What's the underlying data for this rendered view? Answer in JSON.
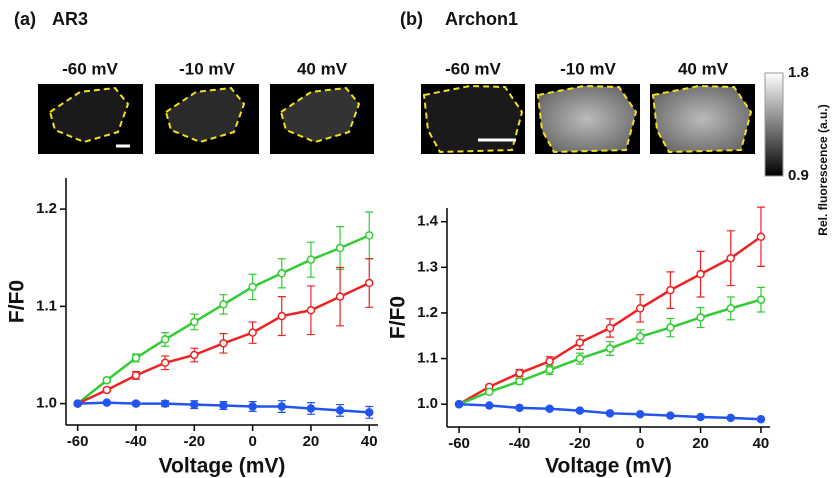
{
  "chart_data": [
    {
      "type": "line",
      "panel_label": "(a)",
      "title": "AR3",
      "image_labels": [
        "-60 mV",
        "-10 mV",
        "40 mV"
      ],
      "xlabel": "Voltage (mV)",
      "ylabel": "F/F0",
      "x": [
        -60,
        -50,
        -40,
        -30,
        -20,
        -10,
        0,
        10,
        20,
        30,
        40
      ],
      "xlim": [
        -64,
        43
      ],
      "xticks": [
        -60,
        -40,
        -20,
        0,
        20,
        40
      ],
      "ylim": [
        0.978,
        1.232
      ],
      "yticks": [
        {
          "value": 1,
          "label": "1.0"
        },
        1.1,
        1.2
      ],
      "series": [
        {
          "color": "#33cc33",
          "values": [
            1.0,
            1.024,
            1.047,
            1.066,
            1.084,
            1.102,
            1.12,
            1.134,
            1.148,
            1.16,
            1.173
          ],
          "errors": [
            0,
            0.002,
            0.004,
            0.007,
            0.008,
            0.01,
            0.013,
            0.015,
            0.018,
            0.022,
            0.024
          ]
        },
        {
          "color": "#ee2222",
          "values": [
            1.0,
            1.014,
            1.029,
            1.042,
            1.05,
            1.062,
            1.073,
            1.09,
            1.096,
            1.11,
            1.124
          ],
          "errors": [
            0,
            0.002,
            0.004,
            0.007,
            0.007,
            0.01,
            0.011,
            0.02,
            0.025,
            0.03,
            0.025
          ]
        },
        {
          "color": "#2255ee",
          "values": [
            1.0,
            1.001,
            1.0,
            1.0,
            0.999,
            0.998,
            0.997,
            0.997,
            0.995,
            0.993,
            0.991
          ],
          "errors": [
            0,
            0.001,
            0.002,
            0.003,
            0.004,
            0.004,
            0.005,
            0.006,
            0.006,
            0.006,
            0.006
          ]
        }
      ]
    },
    {
      "type": "line",
      "panel_label": "(b)",
      "title": "Archon1",
      "image_labels": [
        "-60 mV",
        "-10 mV",
        "40 mV"
      ],
      "xlabel": "Voltage (mV)",
      "ylabel": "F/F0",
      "x": [
        -60,
        -50,
        -40,
        -30,
        -20,
        -10,
        0,
        10,
        20,
        30,
        40
      ],
      "xlim": [
        -64,
        43
      ],
      "xticks": [
        -60,
        -40,
        -20,
        0,
        20,
        40
      ],
      "ylim": [
        0.95,
        1.43
      ],
      "yticks": [
        {
          "value": 1,
          "label": "1.0"
        },
        1.1,
        1.2,
        1.3,
        1.4
      ],
      "series": [
        {
          "color": "#ee2222",
          "values": [
            1.0,
            1.038,
            1.068,
            1.094,
            1.135,
            1.167,
            1.21,
            1.25,
            1.285,
            1.32,
            1.367
          ],
          "errors": [
            0,
            0.005,
            0.008,
            0.01,
            0.015,
            0.02,
            0.03,
            0.04,
            0.05,
            0.06,
            0.065
          ]
        },
        {
          "color": "#33cc33",
          "values": [
            1.0,
            1.027,
            1.05,
            1.075,
            1.1,
            1.122,
            1.148,
            1.168,
            1.19,
            1.21,
            1.229
          ],
          "errors": [
            0,
            0.004,
            0.006,
            0.01,
            0.012,
            0.015,
            0.015,
            0.02,
            0.022,
            0.025,
            0.027
          ]
        },
        {
          "color": "#2255ee",
          "values": [
            1.0,
            0.997,
            0.992,
            0.99,
            0.986,
            0.98,
            0.978,
            0.975,
            0.972,
            0.97,
            0.967
          ],
          "errors": [
            0,
            0.001,
            0.001,
            0.002,
            0.002,
            0.002,
            0.002,
            0.002,
            0.002,
            0.002,
            0.002
          ]
        }
      ]
    }
  ],
  "colorbar": {
    "label": "Rel. fluorescence (a.u.)",
    "lim": [
      0.9,
      1.8
    ],
    "ticks": [
      1.8,
      0.9
    ]
  }
}
